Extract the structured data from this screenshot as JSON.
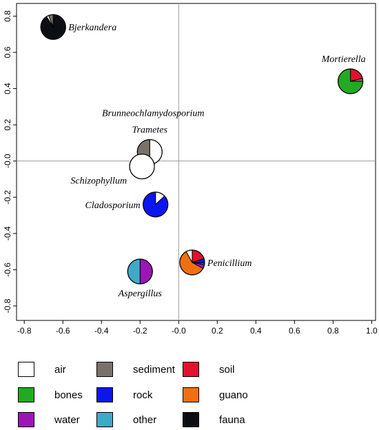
{
  "chart_data": {
    "type": "scatter",
    "title": "",
    "xlabel": "",
    "ylabel": "",
    "xlim": [
      -0.84,
      1.02
    ],
    "ylim": [
      -0.88,
      0.87
    ],
    "x_ticks": [
      -0.8,
      -0.6,
      -0.4,
      -0.2,
      0.0,
      0.2,
      0.4,
      0.6,
      0.8,
      1.0
    ],
    "x_tick_labels": [
      "-0.8",
      "-0.6",
      "-0.4",
      "-0.2",
      "-0.0",
      "0.2",
      "0.4",
      "0.6",
      "0.8",
      "1.0"
    ],
    "y_ticks": [
      0.8,
      0.6,
      0.4,
      0.2,
      0.0,
      -0.2,
      -0.4,
      -0.6,
      -0.8
    ],
    "y_tick_labels": [
      "0.8",
      "0.6",
      "0.4",
      "0.2",
      "-0.0",
      "-0.2",
      "-0.4",
      "-0.6",
      "-0.8"
    ],
    "reference_lines": {
      "x": 0.0,
      "y": 0.0
    },
    "grid": false,
    "legend_position": "bottom",
    "categories": [
      {
        "key": "air",
        "label": "air",
        "color": "#ffffff"
      },
      {
        "key": "bones",
        "label": "bones",
        "color": "#22aa22"
      },
      {
        "key": "water",
        "label": "water",
        "color": "#9b17b5"
      },
      {
        "key": "sediment",
        "label": "sediment",
        "color": "#7a726a"
      },
      {
        "key": "rock",
        "label": "rock",
        "color": "#0a16ee"
      },
      {
        "key": "other",
        "label": "other",
        "color": "#3fa9c8"
      },
      {
        "key": "soil",
        "label": "soil",
        "color": "#e3112e"
      },
      {
        "key": "guano",
        "label": "guano",
        "color": "#f06f12"
      },
      {
        "key": "fauna",
        "label": "fauna",
        "color": "#0b0e12"
      }
    ],
    "points": [
      {
        "name": "Bjerkandera",
        "x": -0.65,
        "y": 0.74,
        "label_pos": "right",
        "slices": {
          "fauna": 0.91,
          "air": 0.03,
          "sediment": 0.06
        }
      },
      {
        "name": "Mortierella",
        "x": 0.89,
        "y": 0.44,
        "label_pos": "above",
        "slices": {
          "soil": 0.21,
          "sediment": 0.04,
          "bones": 0.75
        }
      },
      {
        "name": "Brunneochlamydosporium",
        "x": -0.15,
        "y": 0.05,
        "label_pos": "above-far",
        "slices": {
          "air": 0.5,
          "sediment": 0.5
        }
      },
      {
        "name": "Trametes",
        "x": -0.15,
        "y": 0.05,
        "label_pos": "above",
        "slices": {}
      },
      {
        "name": "Schizophyllum",
        "x": -0.19,
        "y": -0.03,
        "label_pos": "left",
        "slices": {
          "air": 1.0
        }
      },
      {
        "name": "Cladosporium",
        "x": -0.12,
        "y": -0.24,
        "label_pos": "left",
        "slices": {
          "air": 0.13,
          "rock": 0.87
        }
      },
      {
        "name": "Penicillium",
        "x": 0.07,
        "y": -0.56,
        "label_pos": "right",
        "slices": {
          "soil": 0.2,
          "rock": 0.06,
          "other": 0.02,
          "water": 0.05,
          "guano": 0.59,
          "air": 0.08
        }
      },
      {
        "name": "Aspergillus",
        "x": -0.2,
        "y": -0.61,
        "label_pos": "below",
        "slices": {
          "water": 0.5,
          "other": 0.5
        }
      }
    ]
  },
  "legend": [
    {
      "key": "air",
      "label": "air"
    },
    {
      "key": "sediment",
      "label": "sediment"
    },
    {
      "key": "soil",
      "label": "soil"
    },
    {
      "key": "bones",
      "label": "bones"
    },
    {
      "key": "rock",
      "label": "rock"
    },
    {
      "key": "guano",
      "label": "guano"
    },
    {
      "key": "water",
      "label": "water"
    },
    {
      "key": "other",
      "label": "other"
    },
    {
      "key": "fauna",
      "label": "fauna"
    }
  ]
}
